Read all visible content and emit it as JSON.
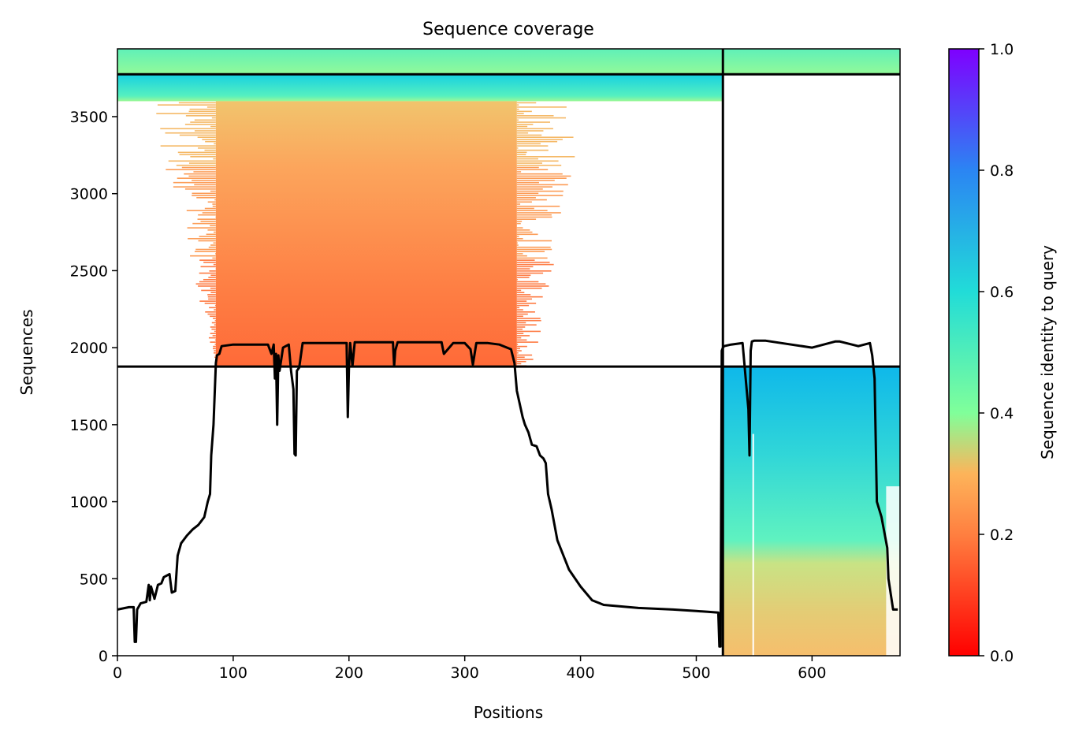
{
  "chart_data": {
    "type": "heatmap",
    "title": "Sequence coverage",
    "xlabel": "Positions",
    "ylabel": "Sequences",
    "xlim": [
      0,
      676
    ],
    "ylim": [
      0,
      3940
    ],
    "grid": false,
    "x_ticks": [
      "0",
      "100",
      "200",
      "300",
      "400",
      "500",
      "600"
    ],
    "y_ticks": [
      "0",
      "500",
      "1000",
      "1500",
      "2000",
      "2500",
      "3000",
      "3500"
    ],
    "colorbar": {
      "label": "Sequence identity to query",
      "colormap": "rainbow_r",
      "range": [
        0,
        1
      ],
      "ticks": [
        "0.0",
        "0.2",
        "0.4",
        "0.6",
        "0.8",
        "1.0"
      ]
    },
    "separators": {
      "chain_boundary_x": 523,
      "horizontal_y": [
        1877,
        3775
      ]
    },
    "blocks": [
      {
        "name": "chain 1 paired block",
        "x": [
          0,
          523
        ],
        "y": [
          3775,
          3940
        ],
        "identity": 0.45
      },
      {
        "name": "chain 1 high-identity block",
        "x": [
          0,
          523
        ],
        "y": [
          3600,
          3775
        ],
        "identity": 0.6
      },
      {
        "name": "chain 1 unpaired block",
        "x": [
          85,
          345
        ],
        "y": [
          1877,
          3600
        ],
        "identity_range": [
          0.15,
          0.27
        ]
      },
      {
        "name": "chain 2 paired block",
        "x": [
          523,
          676
        ],
        "y": [
          3775,
          3940
        ],
        "identity": 0.45
      },
      {
        "name": "chain 2 unpaired block",
        "x": [
          523,
          676
        ],
        "y": [
          0,
          1877
        ],
        "identity_range": [
          0.22,
          0.65
        ]
      }
    ],
    "coverage_line": {
      "x": [
        0,
        10,
        14,
        15,
        16,
        17,
        20,
        25,
        27,
        28,
        29,
        32,
        35,
        38,
        40,
        45,
        47,
        50,
        52,
        55,
        60,
        65,
        70,
        75,
        78,
        80,
        81,
        83,
        85,
        86,
        88,
        90,
        95,
        100,
        130,
        133,
        135,
        136,
        137,
        138,
        139,
        140,
        143,
        148,
        150,
        152,
        153,
        154,
        155,
        157,
        160,
        180,
        198,
        199,
        200,
        201,
        203,
        205,
        230,
        238,
        239,
        240,
        242,
        280,
        282,
        290,
        300,
        305,
        307,
        310,
        320,
        330,
        340,
        343,
        345,
        350,
        352,
        355,
        358,
        362,
        365,
        368,
        370,
        372,
        375,
        380,
        390,
        400,
        410,
        420,
        450,
        480,
        500,
        510,
        519,
        520,
        521,
        522,
        523,
        524,
        530,
        540,
        545,
        546,
        547,
        548,
        550,
        552,
        560,
        600,
        620,
        622,
        624,
        640,
        650,
        652,
        654,
        656,
        660,
        665,
        666,
        670,
        674,
        675,
        676
      ],
      "y": [
        300,
        315,
        315,
        90,
        90,
        300,
        340,
        350,
        460,
        360,
        450,
        370,
        460,
        470,
        510,
        530,
        410,
        420,
        650,
        730,
        780,
        820,
        850,
        900,
        1000,
        1050,
        1300,
        1500,
        1900,
        1950,
        1960,
        2010,
        2015,
        2020,
        2020,
        1960,
        2020,
        1800,
        1960,
        1500,
        1950,
        1850,
        2000,
        2020,
        1850,
        1730,
        1310,
        1300,
        1850,
        1870,
        2030,
        2030,
        2030,
        1550,
        1880,
        2030,
        1880,
        2035,
        2035,
        2035,
        1880,
        1980,
        2035,
        2035,
        1960,
        2030,
        2030,
        1990,
        1890,
        2030,
        2030,
        2020,
        1990,
        1900,
        1720,
        1550,
        1500,
        1450,
        1370,
        1360,
        1300,
        1280,
        1250,
        1050,
        950,
        750,
        560,
        450,
        360,
        330,
        310,
        300,
        290,
        285,
        280,
        60,
        60,
        1980,
        2000,
        2010,
        2020,
        2030,
        1600,
        1300,
        1980,
        2040,
        2045,
        2045,
        2045,
        2000,
        2040,
        2040,
        2040,
        2010,
        2030,
        1950,
        1800,
        1000,
        900,
        700,
        500,
        300,
        300
      ]
    }
  }
}
